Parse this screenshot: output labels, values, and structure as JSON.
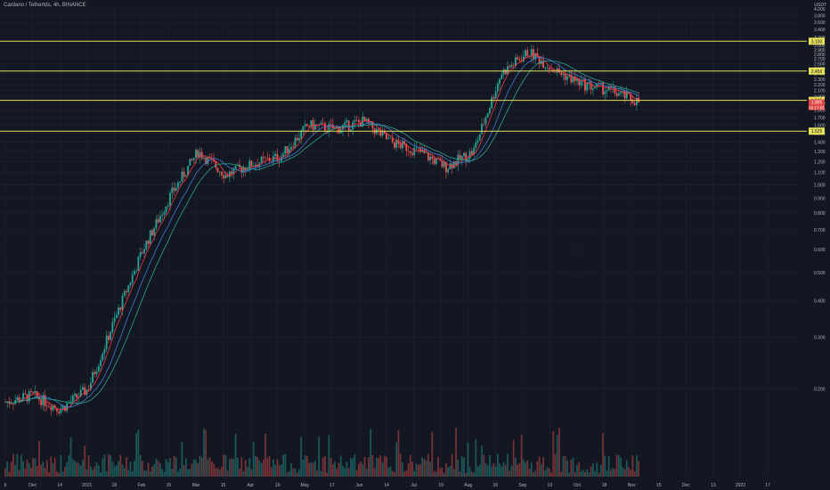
{
  "header": {
    "symbol_title": "Cardano / Tethertds, 4h, BINANCE",
    "currency": "USDT"
  },
  "colors": {
    "background": "#131722",
    "grid": "#1f2330",
    "axis_text": "#b2b5be",
    "candle_up": "#26a69a",
    "candle_down": "#ef5350",
    "ma_fast": "#f23645",
    "ma_mid": "#3f7bd8",
    "ma_slow": "#2fa58d",
    "hline": "#e6e05a"
  },
  "chart_data": {
    "type": "candlestick",
    "title": "Cardano / Tethertds, 4h, BINANCE",
    "xlabel": "",
    "ylabel": "USDT",
    "ylim": [
      0.1,
      4.0
    ],
    "y_scale": "log",
    "grid": false,
    "x_tick_labels": [
      "6",
      "Dec",
      "14",
      "2021",
      "18",
      "Feb",
      "15",
      "Mar",
      "15",
      "Apr",
      "19",
      "May",
      "17",
      "Jun",
      "14",
      "Jul",
      "19",
      "Aug",
      "16",
      "Sep",
      "13",
      "Oct",
      "18",
      "Nov",
      "15",
      "Dec",
      "13",
      "2022",
      "17"
    ],
    "y_tick_labels": [
      "4.000",
      "3.800",
      "3.600",
      "3.400",
      "3.200",
      "3.000",
      "2.900",
      "2.800",
      "2.700",
      "2.600",
      "2.500",
      "2.400",
      "2.300",
      "2.200",
      "2.100",
      "2.000",
      "1.900",
      "1.800",
      "1.700",
      "1.600",
      "1.500",
      "1.400",
      "1.300",
      "1.200",
      "1.100",
      "1.000",
      "0.900",
      "0.800",
      "0.700",
      "0.600",
      "0.500",
      "0.400",
      "0.300",
      "0.200"
    ],
    "horizontal_lines": [
      {
        "value": 3.1,
        "label": "3.100"
      },
      {
        "value": 2.45,
        "label": "2.450"
      },
      {
        "value": 1.945,
        "label": "1.945"
      },
      {
        "value": 1.525,
        "label": "1.525"
      }
    ],
    "current_price": {
      "value": 1.905,
      "label": "1.905",
      "sub_label": "02:17:55"
    },
    "price_path": {
      "x_index": [
        "6",
        "Dec",
        "14",
        "2021",
        "18",
        "Feb",
        "15",
        "Mar",
        "15",
        "Apr",
        "19",
        "May",
        "17",
        "Jun",
        "14",
        "Jul",
        "19",
        "Aug",
        "16",
        "Sep",
        "13",
        "Oct",
        "18",
        "Nov"
      ],
      "close_approx": [
        0.18,
        0.19,
        0.17,
        0.2,
        0.35,
        0.6,
        0.92,
        1.3,
        1.08,
        1.18,
        1.25,
        1.6,
        1.55,
        1.65,
        1.4,
        1.3,
        1.15,
        1.3,
        2.4,
        2.85,
        2.45,
        2.2,
        2.1,
        1.92
      ]
    },
    "moving_averages": [
      {
        "color": "red",
        "period_desc": "fast"
      },
      {
        "color": "blue",
        "period_desc": "medium"
      },
      {
        "color": "green",
        "period_desc": "slow"
      }
    ]
  }
}
